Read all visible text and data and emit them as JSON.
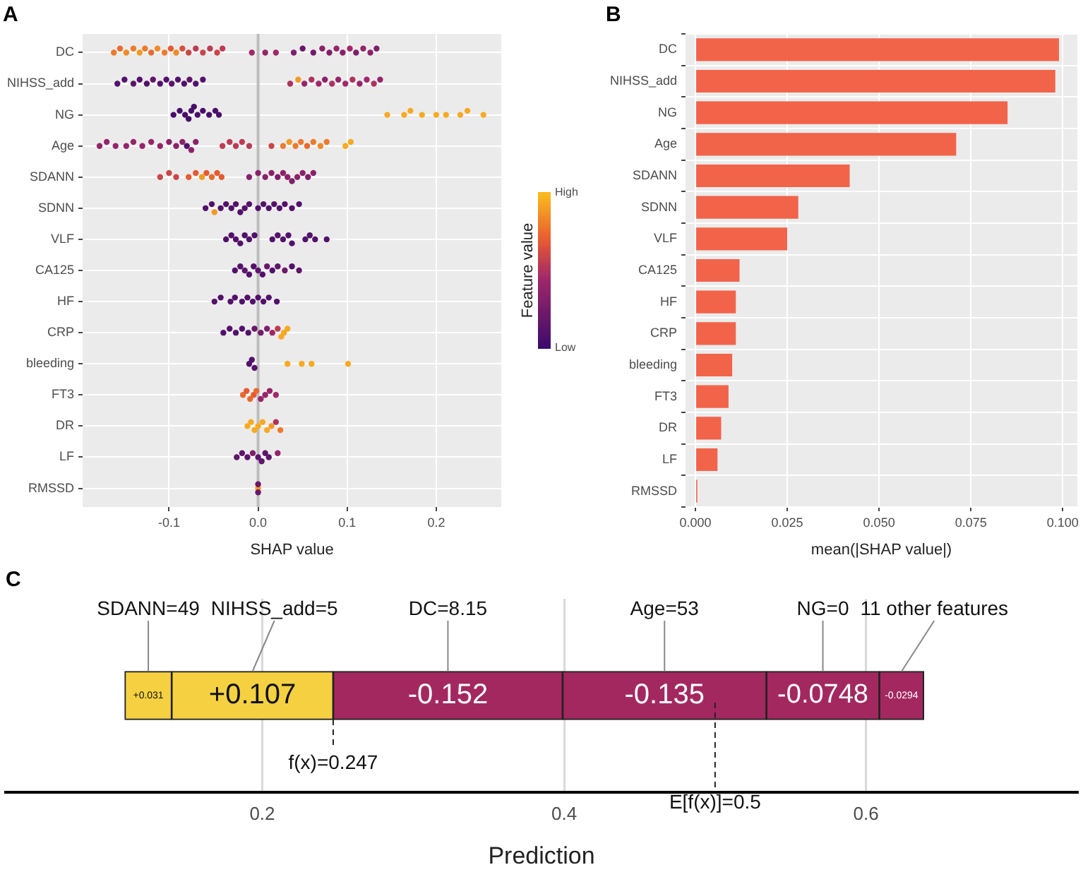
{
  "chart_data": [
    {
      "type": "scatter",
      "title": "A",
      "xlabel": "SHAP value",
      "clabel": "Feature value",
      "orientation": "horizontal",
      "marker": "circle",
      "grid": true,
      "categories": [
        "DC",
        "NIHSS_add",
        "NG",
        "Age",
        "SDANN",
        "SDNN",
        "VLF",
        "CA125",
        "HF",
        "CRP",
        "bleeding",
        "FT3",
        "DR",
        "LF",
        "RMSSD"
      ],
      "xlim": [
        -0.197,
        0.273
      ],
      "xticks": [
        {
          "value": -0.1,
          "label": "-0.1"
        },
        {
          "value": 0,
          "label": "0.0"
        },
        {
          "value": 0.1,
          "label": "0.1"
        },
        {
          "value": 0.2,
          "label": "0.2"
        }
      ],
      "clim": [
        0,
        1
      ],
      "cticks": [
        {
          "value": 0,
          "label": "Low"
        },
        {
          "value": 1,
          "label": "High"
        }
      ],
      "ref_lines": [
        {
          "axis": "x",
          "value": 0,
          "color": "#bdbdbd"
        }
      ],
      "series": [
        {
          "x": [
            "DC",
            "DC",
            "DC",
            "DC",
            "DC",
            "DC",
            "DC",
            "DC",
            "DC",
            "DC",
            "DC",
            "DC",
            "DC",
            "DC",
            "DC",
            "DC",
            "DC",
            "DC",
            "DC",
            "DC",
            "DC",
            "DC",
            "DC",
            "DC",
            "DC",
            "DC",
            "DC",
            "DC",
            "DC",
            "DC",
            "DC",
            "DC",
            "DC"
          ],
          "values": [
            -0.162,
            -0.155,
            -0.148,
            -0.14,
            -0.133,
            -0.127,
            -0.12,
            -0.113,
            -0.105,
            -0.098,
            -0.092,
            -0.085,
            -0.078,
            -0.07,
            -0.062,
            -0.054,
            -0.046,
            -0.04,
            -0.007,
            0.008,
            0.02,
            0.04,
            0.05,
            0.062,
            0.072,
            0.08,
            0.088,
            0.095,
            0.103,
            0.11,
            0.118,
            0.126,
            0.133
          ],
          "colors": [
            "#ed7a2b",
            "#e96a2f",
            "#f08a28",
            "#ed7a2b",
            "#f39925",
            "#ed7a2b",
            "#e96a2f",
            "#f08a28",
            "#ed7a2b",
            "#e65a32",
            "#f08a28",
            "#d8503d",
            "#ca4648",
            "#bc3c53",
            "#ca4648",
            "#bc3c53",
            "#ca4648",
            "#bc3c53",
            "#a02869",
            "#952569",
            "#a02869",
            "#7f1e6a",
            "#69186a",
            "#741b6a",
            "#8a2269",
            "#7f1e6a",
            "#952569",
            "#8a2269",
            "#a02869",
            "#7f1e6a",
            "#952569",
            "#8a2269",
            "#7f1e6a"
          ]
        },
        {
          "x": [
            "NIHSS_add",
            "NIHSS_add",
            "NIHSS_add",
            "NIHSS_add",
            "NIHSS_add",
            "NIHSS_add",
            "NIHSS_add",
            "NIHSS_add",
            "NIHSS_add",
            "NIHSS_add",
            "NIHSS_add",
            "NIHSS_add",
            "NIHSS_add",
            "NIHSS_add",
            "NIHSS_add",
            "NIHSS_add",
            "NIHSS_add",
            "NIHSS_add",
            "NIHSS_add",
            "NIHSS_add",
            "NIHSS_add",
            "NIHSS_add",
            "NIHSS_add",
            "NIHSS_add",
            "NIHSS_add",
            "NIHSS_add",
            "NIHSS_add",
            "NIHSS_add"
          ],
          "values": [
            -0.158,
            -0.15,
            -0.14,
            -0.133,
            -0.125,
            -0.118,
            -0.11,
            -0.103,
            -0.097,
            -0.09,
            -0.083,
            -0.077,
            -0.07,
            -0.062,
            0.036,
            0.045,
            0.052,
            0.06,
            0.068,
            0.075,
            0.083,
            0.09,
            0.098,
            0.106,
            0.114,
            0.122,
            0.13,
            0.137
          ],
          "colors": [
            "#53116b",
            "#53116b",
            "#5e156a",
            "#53116b",
            "#53116b",
            "#5e156a",
            "#53116b",
            "#53116b",
            "#5e156a",
            "#53116b",
            "#53116b",
            "#5e156a",
            "#53116b",
            "#53116b",
            "#ae325e",
            "#f39925",
            "#952569",
            "#ae325e",
            "#a02869",
            "#8a2269",
            "#ae325e",
            "#952569",
            "#a02869",
            "#ae325e",
            "#952569",
            "#a02869",
            "#ae325e",
            "#952569"
          ]
        },
        {
          "x": [
            "NG",
            "NG",
            "NG",
            "NG",
            "NG",
            "NG",
            "NG",
            "NG",
            "NG",
            "NG",
            "NG",
            "NG",
            "NG",
            "NG",
            "NG",
            "NG",
            "NG",
            "NG",
            "NG",
            "NG"
          ],
          "values": [
            -0.095,
            -0.088,
            -0.082,
            -0.078,
            -0.075,
            -0.072,
            -0.068,
            -0.062,
            -0.055,
            -0.048,
            -0.044,
            0.145,
            0.164,
            0.171,
            0.184,
            0.2,
            0.211,
            0.227,
            0.235,
            0.253
          ],
          "colors": [
            "#480e6b",
            "#480e6b",
            "#480e6b",
            "#480e6b",
            "#480e6b",
            "#480e6b",
            "#480e6b",
            "#480e6b",
            "#480e6b",
            "#480e6b",
            "#480e6b",
            "#f7a921",
            "#f7a921",
            "#f7a921",
            "#f7a921",
            "#f7a921",
            "#f7a921",
            "#f7a921",
            "#f7a921",
            "#f7a921"
          ]
        },
        {
          "x": [
            "Age",
            "Age",
            "Age",
            "Age",
            "Age",
            "Age",
            "Age",
            "Age",
            "Age",
            "Age",
            "Age",
            "Age",
            "Age",
            "Age",
            "Age",
            "Age",
            "Age",
            "Age",
            "Age",
            "Age",
            "Age",
            "Age",
            "Age",
            "Age",
            "Age",
            "Age",
            "Age",
            "Age",
            "Age",
            "Age"
          ],
          "values": [
            -0.178,
            -0.17,
            -0.16,
            -0.148,
            -0.14,
            -0.13,
            -0.12,
            -0.11,
            -0.1,
            -0.092,
            -0.085,
            -0.08,
            -0.075,
            -0.07,
            -0.04,
            -0.032,
            -0.025,
            -0.018,
            -0.01,
            0.015,
            0.028,
            0.035,
            0.042,
            0.048,
            0.055,
            0.062,
            0.07,
            0.077,
            0.098,
            0.104
          ],
          "colors": [
            "#952569",
            "#952569",
            "#952569",
            "#952569",
            "#952569",
            "#952569",
            "#952569",
            "#952569",
            "#8a2269",
            "#8a2269",
            "#8a2269",
            "#53116b",
            "#8a2269",
            "#8a2269",
            "#bc3c53",
            "#bc3c53",
            "#bc3c53",
            "#bc3c53",
            "#bc3c53",
            "#ca4648",
            "#ed7a2b",
            "#f39925",
            "#ed7a2b",
            "#ed7a2b",
            "#e96a2f",
            "#ed7a2b",
            "#f08a28",
            "#ed7a2b",
            "#f7a921",
            "#f7a921"
          ]
        },
        {
          "x": [
            "SDANN",
            "SDANN",
            "SDANN",
            "SDANN",
            "SDANN",
            "SDANN",
            "SDANN",
            "SDANN",
            "SDANN",
            "SDANN",
            "SDANN",
            "SDANN",
            "SDANN",
            "SDANN",
            "SDANN",
            "SDANN",
            "SDANN",
            "SDANN",
            "SDANN",
            "SDANN",
            "SDANN",
            "SDANN"
          ],
          "values": [
            -0.11,
            -0.1,
            -0.092,
            -0.078,
            -0.07,
            -0.063,
            -0.058,
            -0.052,
            -0.046,
            -0.041,
            -0.01,
            0.0,
            0.008,
            0.015,
            0.022,
            0.028,
            0.033,
            0.038,
            0.044,
            0.05,
            0.056,
            0.062
          ],
          "colors": [
            "#ca4648",
            "#ca4648",
            "#ca4648",
            "#e65a32",
            "#e65a32",
            "#f39925",
            "#e65a32",
            "#e96a2f",
            "#e65a32",
            "#e65a32",
            "#8a2269",
            "#8a2269",
            "#8a2269",
            "#8a2269",
            "#7f1e6a",
            "#8a2269",
            "#8a2269",
            "#7f1e6a",
            "#8a2269",
            "#8a2269",
            "#7f1e6a",
            "#8a2269"
          ]
        },
        {
          "x": [
            "SDNN",
            "SDNN",
            "SDNN",
            "SDNN",
            "SDNN",
            "SDNN",
            "SDNN",
            "SDNN",
            "SDNN",
            "SDNN",
            "SDNN",
            "SDNN",
            "SDNN",
            "SDNN",
            "SDNN",
            "SDNN",
            "SDNN",
            "SDNN"
          ],
          "values": [
            -0.059,
            -0.052,
            -0.049,
            -0.042,
            -0.036,
            -0.03,
            -0.025,
            -0.02,
            -0.015,
            -0.01,
            0.0,
            0.006,
            0.012,
            0.018,
            0.024,
            0.03,
            0.038,
            0.046
          ],
          "colors": [
            "#53116b",
            "#53116b",
            "#f39925",
            "#53116b",
            "#53116b",
            "#53116b",
            "#53116b",
            "#53116b",
            "#53116b",
            "#53116b",
            "#53116b",
            "#53116b",
            "#53116b",
            "#53116b",
            "#53116b",
            "#53116b",
            "#53116b",
            "#53116b"
          ]
        },
        {
          "x": [
            "VLF",
            "VLF",
            "VLF",
            "VLF",
            "VLF",
            "VLF",
            "VLF",
            "VLF",
            "VLF",
            "VLF",
            "VLF",
            "VLF",
            "VLF",
            "VLF",
            "VLF",
            "VLF"
          ],
          "values": [
            -0.036,
            -0.03,
            -0.025,
            -0.02,
            -0.015,
            -0.01,
            -0.004,
            0.016,
            0.022,
            0.028,
            0.034,
            0.038,
            0.053,
            0.058,
            0.064,
            0.077
          ],
          "color": "#53116b"
        },
        {
          "x": [
            "CA125",
            "CA125",
            "CA125",
            "CA125",
            "CA125",
            "CA125",
            "CA125",
            "CA125",
            "CA125",
            "CA125",
            "CA125",
            "CA125",
            "CA125"
          ],
          "values": [
            -0.026,
            -0.02,
            -0.015,
            -0.01,
            -0.005,
            0.0,
            0.005,
            0.01,
            0.016,
            0.022,
            0.03,
            0.038,
            0.046
          ],
          "colors": [
            "#53116b",
            "#53116b",
            "#5e156a",
            "#53116b",
            "#53116b",
            "#5e156a",
            "#53116b",
            "#69186a",
            "#53116b",
            "#5e156a",
            "#69186a",
            "#53116b",
            "#5e156a"
          ]
        },
        {
          "x": [
            "HF",
            "HF",
            "HF",
            "HF",
            "HF",
            "HF",
            "HF",
            "HF",
            "HF",
            "HF",
            "HF"
          ],
          "values": [
            -0.049,
            -0.042,
            -0.031,
            -0.026,
            -0.018,
            -0.012,
            -0.006,
            0.0,
            0.006,
            0.012,
            0.021
          ],
          "color": "#53116b"
        },
        {
          "x": [
            "CRP",
            "CRP",
            "CRP",
            "CRP",
            "CRP",
            "CRP",
            "CRP",
            "CRP",
            "CRP",
            "CRP",
            "CRP",
            "CRP",
            "CRP"
          ],
          "values": [
            -0.039,
            -0.032,
            -0.025,
            -0.018,
            -0.011,
            -0.004,
            0.003,
            0.01,
            0.016,
            0.022,
            0.026,
            0.029,
            0.033
          ],
          "colors": [
            "#53116b",
            "#53116b",
            "#53116b",
            "#53116b",
            "#53116b",
            "#69186a",
            "#741b6a",
            "#7f1e6a",
            "#a02869",
            "#bc3c53",
            "#f7a921",
            "#f7a921",
            "#f7a921"
          ]
        },
        {
          "x": [
            "bleeding",
            "bleeding",
            "bleeding",
            "bleeding",
            "bleeding",
            "bleeding",
            "bleeding"
          ],
          "values": [
            -0.01,
            -0.007,
            -0.004,
            0.033,
            0.049,
            0.06,
            0.101
          ],
          "colors": [
            "#53116b",
            "#53116b",
            "#53116b",
            "#f7a921",
            "#f7a921",
            "#f7a921",
            "#f7a921"
          ]
        },
        {
          "x": [
            "FT3",
            "FT3",
            "FT3",
            "FT3",
            "FT3",
            "FT3",
            "FT3",
            "FT3",
            "FT3"
          ],
          "values": [
            -0.017,
            -0.013,
            -0.009,
            -0.005,
            -0.002,
            0.003,
            0.008,
            0.013,
            0.02
          ],
          "colors": [
            "#e96a2f",
            "#e65a32",
            "#e96a2f",
            "#e65a32",
            "#e96a2f",
            "#952569",
            "#952569",
            "#952569",
            "#a02869"
          ]
        },
        {
          "x": [
            "DR",
            "DR",
            "DR",
            "DR",
            "DR",
            "DR",
            "DR",
            "DR",
            "DR"
          ],
          "values": [
            -0.012,
            -0.008,
            -0.004,
            0.0,
            0.005,
            0.01,
            0.015,
            0.02,
            0.025
          ],
          "colors": [
            "#f7a921",
            "#f7a921",
            "#f7a921",
            "#f7a921",
            "#f7a921",
            "#f7a921",
            "#f39925",
            "#ae325e",
            "#ed7a2b"
          ]
        },
        {
          "x": [
            "LF",
            "LF",
            "LF",
            "LF",
            "LF",
            "LF",
            "LF",
            "LF",
            "LF"
          ],
          "values": [
            -0.024,
            -0.018,
            -0.012,
            -0.006,
            0.0,
            0.004,
            0.008,
            0.012,
            0.022
          ],
          "colors": [
            "#5e156a",
            "#5e156a",
            "#5e156a",
            "#7f1e6a",
            "#5e156a",
            "#5e156a",
            "#5e156a",
            "#5e156a",
            "#952569"
          ]
        },
        {
          "x": [
            "RMSSD",
            "RMSSD",
            "RMSSD"
          ],
          "values": [
            0.0,
            0.0,
            0.0
          ],
          "colors": [
            "#f39925",
            "#69186a",
            "#69186a"
          ]
        }
      ]
    },
    {
      "type": "bar",
      "title": "B",
      "xlabel": "mean(|SHAP value|)",
      "orientation": "horizontal",
      "grid": true,
      "color": "#f2644a",
      "categories": [
        "DC",
        "NIHSS_add",
        "NG",
        "Age",
        "SDANN",
        "SDNN",
        "VLF",
        "CA125",
        "HF",
        "CRP",
        "bleeding",
        "FT3",
        "DR",
        "LF",
        "RMSSD"
      ],
      "values": [
        0.099,
        0.098,
        0.085,
        0.071,
        0.042,
        0.028,
        0.025,
        0.012,
        0.011,
        0.011,
        0.01,
        0.009,
        0.007,
        0.006,
        0.0005
      ],
      "xlim": [
        -0.0027,
        0.104
      ],
      "xticks": [
        {
          "value": 0,
          "label": "0.000"
        },
        {
          "value": 0.025,
          "label": "0.025"
        },
        {
          "value": 0.05,
          "label": "0.050"
        },
        {
          "value": 0.075,
          "label": "0.075"
        },
        {
          "value": 0.1,
          "label": "0.100"
        }
      ]
    },
    {
      "type": "bar",
      "title": "C",
      "xlabel": "Prediction",
      "orientation": "horizontal",
      "grid": "x",
      "tick_labels": "x",
      "categories": [
        null
      ],
      "xlim": [
        0.03,
        0.74
      ],
      "xticks": [
        0.2,
        0.4,
        0.6
      ],
      "series": [
        {
          "name": "SDANN=49",
          "color": "#f5d142",
          "values": [
            0.031
          ],
          "base": [
            0.109
          ],
          "value_labels": [
            "+0.031"
          ]
        },
        {
          "name": "NIHSS_add=5",
          "color": "#f5d142",
          "values": [
            0.107
          ],
          "base": [
            0.14
          ],
          "value_labels": [
            "+0.107"
          ]
        },
        {
          "name": "DC=8.15",
          "color": "#a3285f",
          "values": [
            -0.152
          ],
          "base": [
            0.399
          ],
          "value_labels": [
            "-0.152"
          ]
        },
        {
          "name": "Age=53",
          "color": "#a3285f",
          "values": [
            -0.135
          ],
          "base": [
            0.534
          ],
          "value_labels": [
            "-0.135"
          ]
        },
        {
          "name": "NG=0",
          "color": "#a3285f",
          "values": [
            -0.0748
          ],
          "base": [
            0.6088
          ],
          "value_labels": [
            "-0.0748"
          ]
        },
        {
          "name": "11 other features",
          "color": "#a3285f",
          "values": [
            -0.0294
          ],
          "base": [
            0.6382
          ],
          "value_labels": [
            "-0.0294"
          ]
        }
      ],
      "ref_lines": [
        {
          "axis": "x",
          "value": 0.5,
          "label": "E[f(x)]=0.5",
          "line_style": "dashed",
          "color": "#222222"
        }
      ],
      "annotations": [
        {
          "text": "f(x)=0.247",
          "x": 0.247
        }
      ]
    }
  ]
}
